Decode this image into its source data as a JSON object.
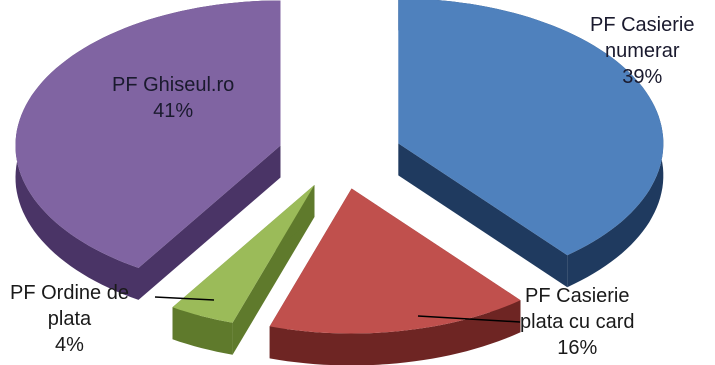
{
  "chart_data": {
    "type": "pie",
    "style": "3d-exploded",
    "title": "",
    "legend": "none",
    "slices": [
      {
        "name": "PF Casierie numerar",
        "label_lines": [
          "PF Casierie",
          "numerar"
        ],
        "value": 39,
        "percent_label": "39%",
        "color": "#4f81bd",
        "side_color": "#1f3a5f"
      },
      {
        "name": "PF Casierie plata cu card",
        "label_lines": [
          "PF Casierie",
          "plata cu card"
        ],
        "value": 16,
        "percent_label": "16%",
        "color": "#c0504d",
        "side_color": "#6e2523"
      },
      {
        "name": "PF Ordine de plata",
        "label_lines": [
          "PF Ordine de",
          "plata"
        ],
        "value": 4,
        "percent_label": "4%",
        "color": "#9bbb59",
        "side_color": "#5f7a2c"
      },
      {
        "name": "PF Ghiseul.ro",
        "label_lines": [
          "PF Ghiseul.ro"
        ],
        "value": 41,
        "percent_label": "41%",
        "color": "#8064a2",
        "side_color": "#4a3466"
      }
    ]
  }
}
